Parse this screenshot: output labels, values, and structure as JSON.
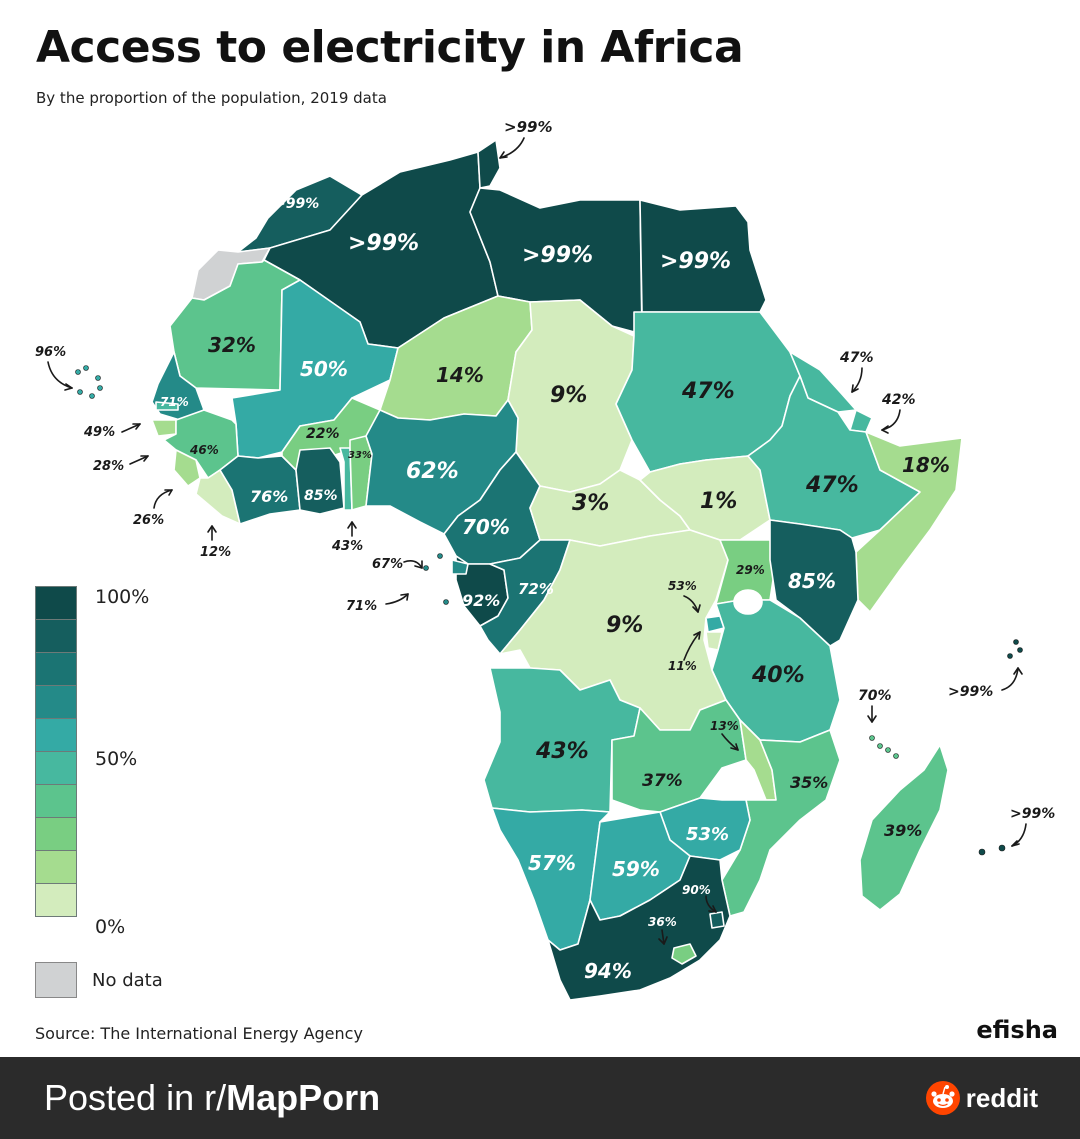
{
  "title": "Access to electricity in Africa",
  "subtitle": "By the proportion of the population, 2019 data",
  "legend": {
    "colors": [
      "#0f4a4a",
      "#155e5e",
      "#1b7473",
      "#248a88",
      "#34aaa5",
      "#47b89f",
      "#5cc48d",
      "#79ce82",
      "#a5dc8f",
      "#d3ecbd"
    ],
    "top_label": "100%",
    "mid_label": "50%",
    "bottom_label": "0%",
    "nodata_label": "No data",
    "nodata_color": "#d0d2d3"
  },
  "labels": {
    "tunisia": ">99%",
    "morocco": ">99%",
    "algeria": ">99%",
    "libya": ">99%",
    "egypt": ">99%",
    "cabo_verde": "96%",
    "mauritania": "32%",
    "mali": "50%",
    "niger": "14%",
    "chad": "9%",
    "sudan": "47%",
    "eritrea": "47%",
    "djibouti": "42%",
    "senegal": "71%",
    "gambia": "49%",
    "guinea_bissau": "28%",
    "guinea": "46%",
    "sierra_leone": "26%",
    "liberia": "12%",
    "burkina_faso": "22%",
    "benin": "33%",
    "nigeria": "62%",
    "somalia": "18%",
    "cote_divoire": "76%",
    "ghana": "85%",
    "togo": "43%",
    "sao_tome": "67%",
    "eq_guinea": "71%",
    "cameroon": "70%",
    "car": "3%",
    "south_sudan": "1%",
    "ethiopia": "47%",
    "uganda": "29%",
    "kenya": "85%",
    "gabon": "92%",
    "congo": "72%",
    "rwanda": "53%",
    "drc": "9%",
    "burundi": "11%",
    "tanzania": "40%",
    "seychelles": ">99%",
    "comoros": "70%",
    "malawi": "13%",
    "angola": "43%",
    "zambia": "37%",
    "mozambique": "35%",
    "mauritius": ">99%",
    "madagascar": "39%",
    "zimbabwe": "53%",
    "namibia": "57%",
    "botswana": "59%",
    "eswatini": "90%",
    "lesotho": "36%",
    "south_africa": "94%"
  },
  "map_data": [
    {
      "country": "Tunisia",
      "value": ">99%"
    },
    {
      "country": "Morocco",
      "value": ">99%"
    },
    {
      "country": "Algeria",
      "value": ">99%"
    },
    {
      "country": "Libya",
      "value": ">99%"
    },
    {
      "country": "Egypt",
      "value": ">99%"
    },
    {
      "country": "Western Sahara",
      "value": "No data"
    },
    {
      "country": "Cabo Verde",
      "value": "96%"
    },
    {
      "country": "Mauritania",
      "value": "32%"
    },
    {
      "country": "Mali",
      "value": "50%"
    },
    {
      "country": "Niger",
      "value": "14%"
    },
    {
      "country": "Chad",
      "value": "9%"
    },
    {
      "country": "Sudan",
      "value": "47%"
    },
    {
      "country": "Eritrea",
      "value": "47%"
    },
    {
      "country": "Djibouti",
      "value": "42%"
    },
    {
      "country": "Senegal",
      "value": "71%"
    },
    {
      "country": "Gambia",
      "value": "49%"
    },
    {
      "country": "Guinea-Bissau",
      "value": "28%"
    },
    {
      "country": "Guinea",
      "value": "46%"
    },
    {
      "country": "Sierra Leone",
      "value": "26%"
    },
    {
      "country": "Liberia",
      "value": "12%"
    },
    {
      "country": "Burkina Faso",
      "value": "22%"
    },
    {
      "country": "Benin",
      "value": "33%"
    },
    {
      "country": "Nigeria",
      "value": "62%"
    },
    {
      "country": "Somalia",
      "value": "18%"
    },
    {
      "country": "Côte d'Ivoire",
      "value": "76%"
    },
    {
      "country": "Ghana",
      "value": "85%"
    },
    {
      "country": "Togo",
      "value": "43%"
    },
    {
      "country": "São Tomé and Príncipe",
      "value": "67%"
    },
    {
      "country": "Equatorial Guinea",
      "value": "71%"
    },
    {
      "country": "Cameroon",
      "value": "70%"
    },
    {
      "country": "Central African Republic",
      "value": "3%"
    },
    {
      "country": "South Sudan",
      "value": "1%"
    },
    {
      "country": "Ethiopia",
      "value": "47%"
    },
    {
      "country": "Uganda",
      "value": "29%"
    },
    {
      "country": "Kenya",
      "value": "85%"
    },
    {
      "country": "Gabon",
      "value": "92%"
    },
    {
      "country": "Republic of the Congo",
      "value": "72%"
    },
    {
      "country": "Rwanda",
      "value": "53%"
    },
    {
      "country": "DR Congo",
      "value": "9%"
    },
    {
      "country": "Burundi",
      "value": "11%"
    },
    {
      "country": "Tanzania",
      "value": "40%"
    },
    {
      "country": "Seychelles",
      "value": ">99%"
    },
    {
      "country": "Comoros",
      "value": "70%"
    },
    {
      "country": "Malawi",
      "value": "13%"
    },
    {
      "country": "Angola",
      "value": "43%"
    },
    {
      "country": "Zambia",
      "value": "37%"
    },
    {
      "country": "Mozambique",
      "value": "35%"
    },
    {
      "country": "Mauritius",
      "value": ">99%"
    },
    {
      "country": "Madagascar",
      "value": "39%"
    },
    {
      "country": "Zimbabwe",
      "value": "53%"
    },
    {
      "country": "Namibia",
      "value": "57%"
    },
    {
      "country": "Botswana",
      "value": "59%"
    },
    {
      "country": "Eswatini",
      "value": "90%"
    },
    {
      "country": "Lesotho",
      "value": "36%"
    },
    {
      "country": "South Africa",
      "value": "94%"
    }
  ],
  "source": "Source: The International Energy Agency",
  "brand": "efisha",
  "footer": {
    "posted_prefix": "Posted in r/",
    "subreddit": "MapPorn",
    "reddit_label": "reddit",
    "reddit_color": "#ff4500"
  }
}
